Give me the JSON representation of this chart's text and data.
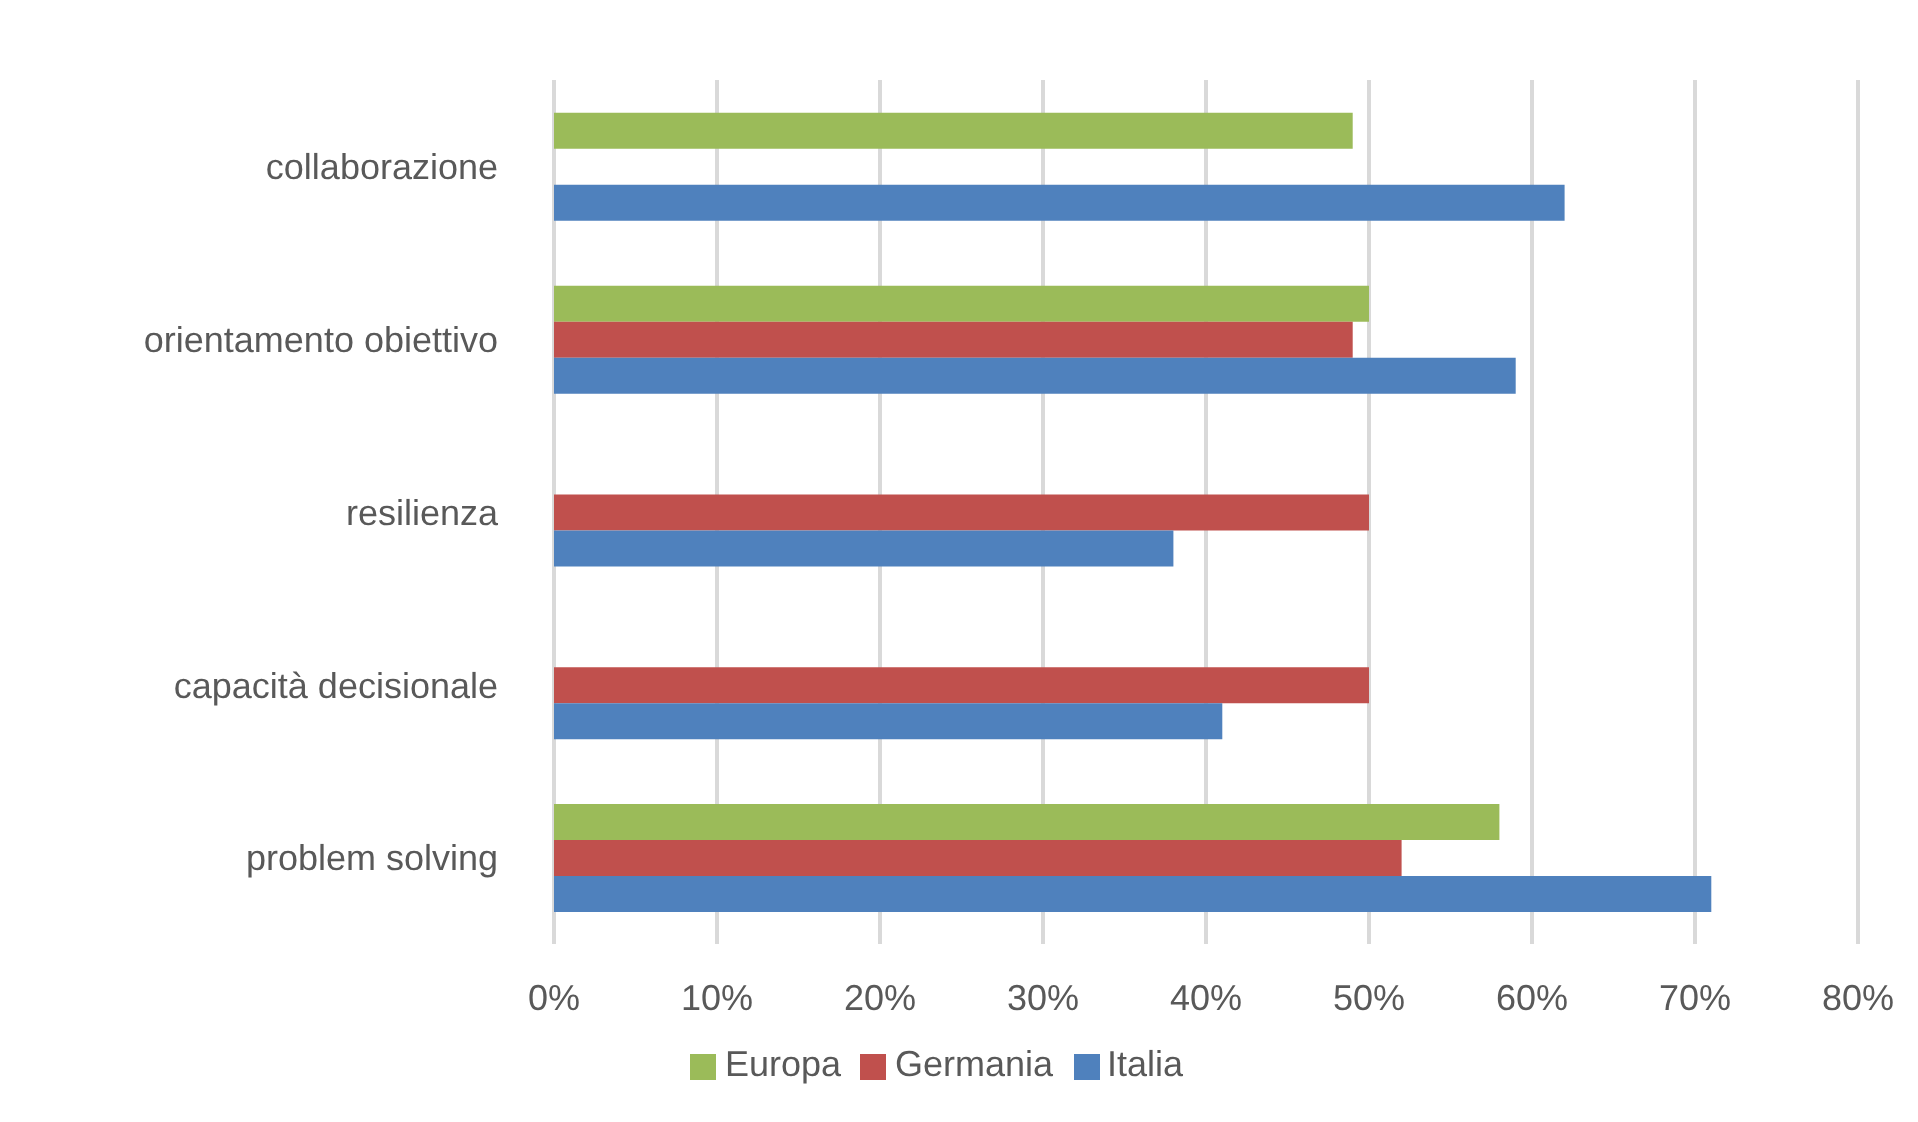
{
  "chart_data": {
    "type": "bar",
    "orientation": "horizontal",
    "categories": [
      "collaborazione",
      "orientamento obiettivo",
      "resilienza",
      "capacità decisionale",
      "problem solving"
    ],
    "series": [
      {
        "name": "Europa",
        "color": "#9bbb59",
        "values": [
          49,
          50,
          null,
          null,
          58
        ]
      },
      {
        "name": "Germania",
        "color": "#c0504d",
        "values": [
          null,
          49,
          50,
          50,
          52
        ]
      },
      {
        "name": "Italia",
        "color": "#4f81bd",
        "values": [
          62,
          59,
          38,
          41,
          71
        ]
      }
    ],
    "xlim": [
      0,
      80
    ],
    "xticks": [
      {
        "value": 0,
        "label": "0%"
      },
      {
        "value": 10,
        "label": "10%"
      },
      {
        "value": 20,
        "label": "20%"
      },
      {
        "value": 30,
        "label": "30%"
      },
      {
        "value": 40,
        "label": "40%"
      },
      {
        "value": 50,
        "label": "50%"
      },
      {
        "value": 60,
        "label": "60%"
      },
      {
        "value": 70,
        "label": "70%"
      },
      {
        "value": 80,
        "label": "80%"
      }
    ],
    "grid": "x",
    "legend": "bottom"
  }
}
